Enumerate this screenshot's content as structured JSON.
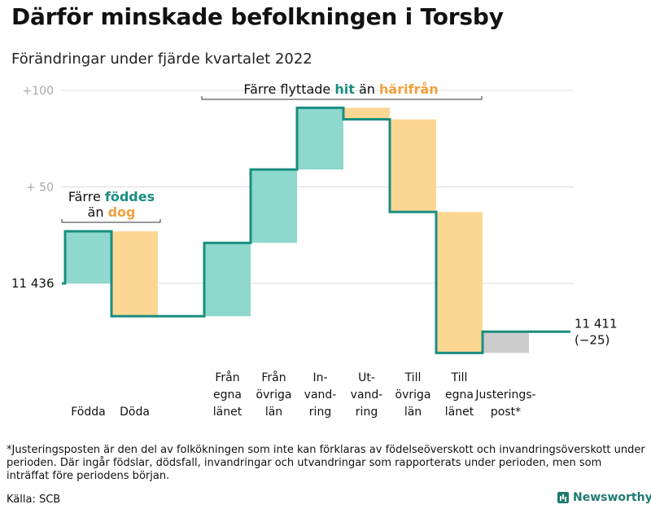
{
  "title": "Därför minskade befolkningen i Torsby",
  "subtitle": "Förändringar under fjärde kvartalet 2022",
  "chart_data": {
    "type": "waterfall",
    "start_value": 11436,
    "end_value": 11411,
    "start_label": "11 436",
    "end_label": "11 411",
    "end_change_label": "(−25)",
    "y_ticks": [
      {
        "value": 100,
        "label": "+100"
      },
      {
        "value": 50,
        "label": "+ 50"
      }
    ],
    "grid": true,
    "steps": [
      {
        "label": [
          "Födda"
        ],
        "change": 27,
        "kind": "in"
      },
      {
        "label": [
          "Döda"
        ],
        "change": -44,
        "kind": "out"
      },
      {
        "label": [
          "",
          "",
          ""
        ],
        "change": 0,
        "kind": "gap"
      },
      {
        "label": [
          "Från",
          "egna",
          "länet"
        ],
        "change": 38,
        "kind": "in"
      },
      {
        "label": [
          "Från",
          "övriga",
          "län"
        ],
        "change": 38,
        "kind": "in"
      },
      {
        "label": [
          "In-",
          "vand-",
          "ring"
        ],
        "change": 32,
        "kind": "in"
      },
      {
        "label": [
          "Ut-",
          "vand-",
          "ring"
        ],
        "change": -6,
        "kind": "out"
      },
      {
        "label": [
          "Till",
          "övriga",
          "län"
        ],
        "change": -48,
        "kind": "out"
      },
      {
        "label": [
          "Till",
          "egna",
          "länet"
        ],
        "change": -73,
        "kind": "out"
      },
      {
        "label": [
          "Justerings-",
          "post*"
        ],
        "change": 11,
        "kind": "adjust"
      }
    ],
    "colors": {
      "in": "#8ed8cd",
      "out": "#fcd794",
      "adjust": "#cccccc",
      "line": "#1a8e80",
      "grid": "#dddddd",
      "tick": "#aaaaaa",
      "hl_green": "#1a8e80",
      "hl_orange": "#f0a03c"
    },
    "annotations": [
      {
        "group": "fodda_doda",
        "parts": [
          [
            "Färre ",
            "plain"
          ],
          [
            "föddes",
            "green"
          ]
        ],
        "parts2": [
          [
            "än ",
            "plain"
          ],
          [
            "dog",
            "orange"
          ]
        ]
      },
      {
        "group": "migration",
        "parts": [
          [
            "Färre flyttade ",
            "plain"
          ],
          [
            "hit",
            "green"
          ],
          [
            " än ",
            "plain"
          ],
          [
            "härifrån",
            "orange"
          ]
        ]
      }
    ]
  },
  "footnote": "*Justeringsposten är den del av folkökningen som inte kan förklaras av födelseöverskott och invandringsöverskott under perioden. Där ingår födslar, dödsfall, invandringar och utvandringar som rapporterats under perioden, men som inträffat före periodens början.",
  "source": "Källa: SCB",
  "brand": "Newsworthy"
}
